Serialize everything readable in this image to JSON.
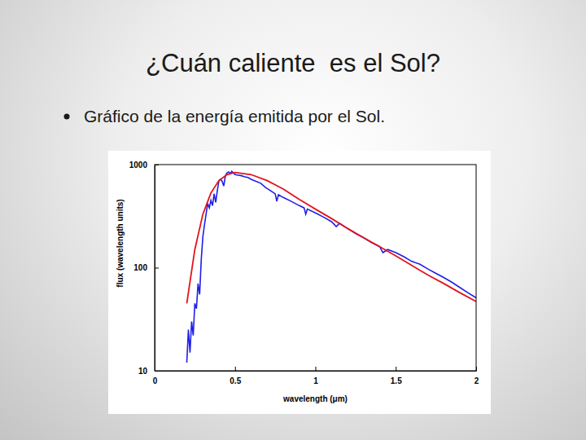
{
  "slide": {
    "title": "¿Cuán caliente  es el Sol?",
    "bullets": [
      "Gráfico de la energía emitida por el Sol."
    ]
  },
  "chart_data": {
    "type": "line",
    "xlabel": "wavelength (μm)",
    "ylabel": "flux (wavelength units)",
    "xlim": [
      0,
      2
    ],
    "xticks": [
      0,
      0.5,
      1,
      1.5,
      2
    ],
    "ylim": [
      10,
      1000
    ],
    "yticks": [
      10,
      100,
      1000
    ],
    "log": "y",
    "series": [
      {
        "color": "#1f1fe6",
        "x": [
          0.2,
          0.21,
          0.22,
          0.23,
          0.24,
          0.25,
          0.26,
          0.27,
          0.28,
          0.29,
          0.3,
          0.31,
          0.32,
          0.33,
          0.34,
          0.35,
          0.36,
          0.37,
          0.38,
          0.39,
          0.4,
          0.41,
          0.42,
          0.43,
          0.44,
          0.45,
          0.46,
          0.47,
          0.48,
          0.49,
          0.5,
          0.52,
          0.54,
          0.56,
          0.58,
          0.6,
          0.63,
          0.66,
          0.69,
          0.72,
          0.75,
          0.76,
          0.77,
          0.8,
          0.85,
          0.9,
          0.93,
          0.94,
          0.95,
          1.0,
          1.05,
          1.1,
          1.13,
          1.15,
          1.2,
          1.25,
          1.3,
          1.35,
          1.4,
          1.42,
          1.45,
          1.5,
          1.55,
          1.6,
          1.65,
          1.7,
          1.75,
          1.8,
          1.85,
          1.9,
          1.95,
          2.0
        ],
        "values": [
          12,
          25,
          15,
          30,
          22,
          45,
          40,
          70,
          55,
          120,
          200,
          260,
          330,
          420,
          380,
          450,
          400,
          520,
          430,
          560,
          700,
          720,
          690,
          620,
          780,
          830,
          850,
          820,
          860,
          830,
          800,
          790,
          780,
          760,
          750,
          720,
          690,
          660,
          600,
          560,
          520,
          440,
          510,
          480,
          440,
          400,
          380,
          330,
          370,
          340,
          310,
          280,
          250,
          270,
          240,
          215,
          195,
          175,
          160,
          140,
          150,
          140,
          128,
          115,
          108,
          97,
          88,
          80,
          72,
          64,
          57,
          51
        ]
      },
      {
        "color": "#e3141b",
        "x": [
          0.2,
          0.25,
          0.3,
          0.35,
          0.4,
          0.45,
          0.5,
          0.6,
          0.7,
          0.8,
          0.9,
          1.0,
          1.1,
          1.2,
          1.3,
          1.4,
          1.5,
          1.6,
          1.7,
          1.8,
          1.9,
          2.0
        ],
        "values": [
          45,
          150,
          330,
          530,
          700,
          800,
          840,
          800,
          700,
          580,
          460,
          370,
          300,
          240,
          195,
          160,
          130,
          105,
          85,
          70,
          57,
          47
        ]
      }
    ]
  }
}
